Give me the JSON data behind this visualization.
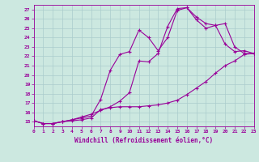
{
  "xlabel": "Windchill (Refroidissement éolien,°C)",
  "bg_color": "#cce8e0",
  "grid_color": "#aacccc",
  "line_color": "#990099",
  "xmin": 0,
  "xmax": 23,
  "ymin": 14.5,
  "ymax": 27.5,
  "yticks": [
    15,
    16,
    17,
    18,
    19,
    20,
    21,
    22,
    23,
    24,
    25,
    26,
    27
  ],
  "line1_x": [
    0,
    1,
    2,
    3,
    4,
    5,
    6,
    7,
    8,
    9,
    10,
    11,
    12,
    13,
    14,
    15,
    16,
    17,
    18,
    19,
    20,
    21,
    22,
    23
  ],
  "line1_y": [
    15.1,
    14.8,
    14.8,
    15.0,
    15.1,
    15.2,
    15.4,
    16.3,
    16.5,
    16.6,
    16.6,
    16.6,
    16.7,
    16.8,
    17.0,
    17.3,
    17.9,
    18.6,
    19.3,
    20.2,
    21.0,
    21.5,
    22.2,
    22.3
  ],
  "line2_x": [
    0,
    1,
    2,
    3,
    4,
    5,
    6,
    7,
    8,
    9,
    10,
    11,
    12,
    13,
    14,
    15,
    16,
    17,
    18,
    19,
    20,
    21,
    22,
    23
  ],
  "line2_y": [
    15.1,
    14.8,
    14.8,
    15.0,
    15.2,
    15.5,
    15.8,
    16.2,
    16.6,
    17.2,
    18.1,
    21.5,
    21.4,
    22.3,
    25.2,
    27.1,
    27.2,
    26.2,
    25.5,
    25.3,
    23.3,
    22.5,
    22.6,
    22.3
  ],
  "line3_x": [
    0,
    1,
    2,
    3,
    4,
    5,
    6,
    7,
    8,
    9,
    10,
    11,
    12,
    13,
    14,
    15,
    16,
    17,
    18,
    19,
    20,
    21,
    22,
    23
  ],
  "line3_y": [
    15.1,
    14.8,
    14.8,
    15.0,
    15.2,
    15.4,
    15.6,
    17.4,
    20.5,
    22.2,
    22.5,
    24.8,
    24.0,
    22.6,
    24.0,
    26.9,
    27.2,
    25.9,
    25.0,
    25.3,
    25.5,
    23.0,
    22.3,
    22.3
  ]
}
